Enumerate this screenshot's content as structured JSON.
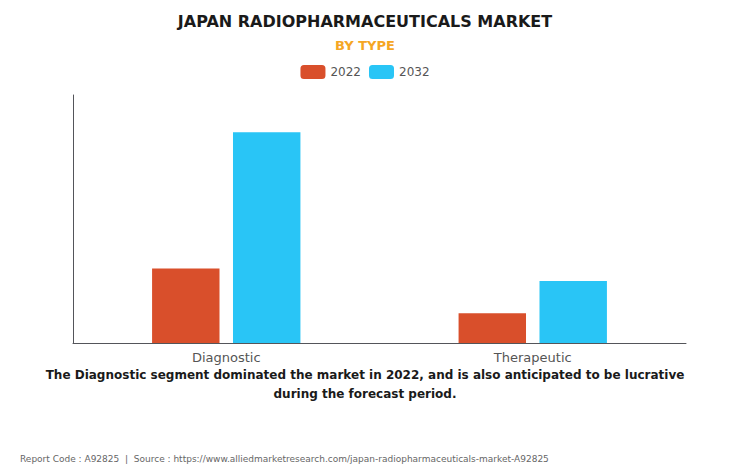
{
  "chart_data": {
    "type": "bar",
    "title": "JAPAN RADIOPHARMACEUTICALS MARKET",
    "subtitle": "BY TYPE",
    "categories": [
      "Diagnostic",
      "Therapeutic"
    ],
    "series": [
      {
        "name": "2022",
        "color": "#D94F2B",
        "values": [
          0.3,
          0.12
        ]
      },
      {
        "name": "2032",
        "color": "#29C5F6",
        "values": [
          0.85,
          0.25
        ]
      }
    ],
    "ylim": [
      0,
      1.0
    ],
    "grid": false,
    "legend": "top",
    "tick_labels": "x",
    "annotation": "The Diagnostic segment dominated the market in 2022, and is also anticipated to be lucrative\nduring the forecast period.",
    "footer": "Report Code : A92825  |  Source : https://www.alliedmarketresearch.com/japan-radiopharmaceuticals-market-A92825"
  }
}
